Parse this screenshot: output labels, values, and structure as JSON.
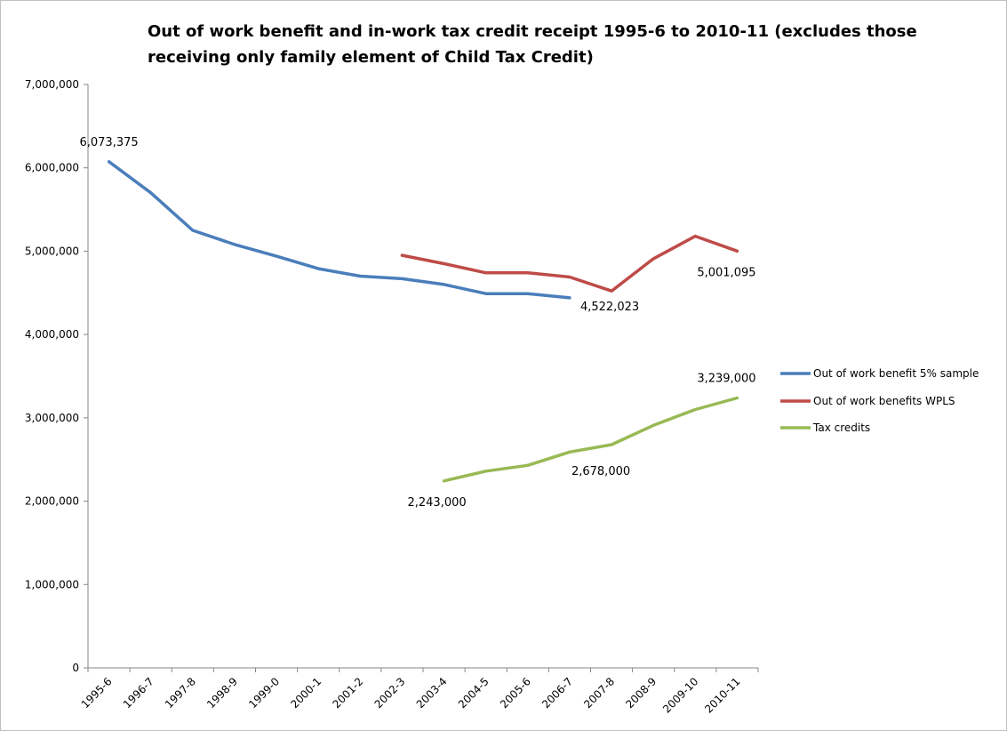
{
  "chart_data": {
    "type": "line",
    "title_lines": [
      "Out of work benefit and in-work tax credit receipt 1995-6 to 2010-11  (excludes those",
      "receiving only family element of Child Tax Credit)"
    ],
    "categories": [
      "1995-6",
      "1996-7",
      "1997-8",
      "1998-9",
      "1999-0",
      "2000-1",
      "2001-2",
      "2002-3",
      "2003-4",
      "2004-5",
      "2005-6",
      "2006-7",
      "2007-8",
      "2008-9",
      "2009-10",
      "2010-11"
    ],
    "ylim": [
      0,
      7000000
    ],
    "y_ticks": [
      0,
      1000000,
      2000000,
      3000000,
      4000000,
      5000000,
      6000000,
      7000000
    ],
    "y_tick_labels": [
      "0",
      "1,000,000",
      "2,000,000",
      "3,000,000",
      "4,000,000",
      "5,000,000",
      "6,000,000",
      "7,000,000"
    ],
    "grid": false,
    "legend_position": "right",
    "series": [
      {
        "name": "Out of work benefit 5% sample",
        "color": "#4a7ebb",
        "values": [
          6073375,
          5700000,
          5250000,
          5080000,
          4940000,
          4790000,
          4700000,
          4670000,
          4600000,
          4490000,
          4490000,
          4440000,
          null,
          null,
          null,
          null
        ]
      },
      {
        "name": "Out of work benefits WPLS",
        "color": "#be4b48",
        "values": [
          null,
          null,
          null,
          null,
          null,
          null,
          null,
          4950000,
          4850000,
          4740000,
          4740000,
          4690000,
          4522023,
          4910000,
          5180000,
          5001095
        ]
      },
      {
        "name": "Tax credits",
        "color": "#98b954",
        "values": [
          null,
          null,
          null,
          null,
          null,
          null,
          null,
          null,
          2243000,
          2360000,
          2430000,
          2590000,
          2678000,
          2910000,
          3100000,
          3239000
        ]
      }
    ],
    "data_labels": [
      {
        "series": 0,
        "index": 0,
        "text": "6,073,375"
      },
      {
        "series": 1,
        "index": 12,
        "text": "4,522,023"
      },
      {
        "series": 1,
        "index": 15,
        "text": "5,001,095"
      },
      {
        "series": 2,
        "index": 8,
        "text": "2,243,000"
      },
      {
        "series": 2,
        "index": 12,
        "text": "2,678,000"
      },
      {
        "series": 2,
        "index": 15,
        "text": "3,239,000"
      }
    ]
  }
}
